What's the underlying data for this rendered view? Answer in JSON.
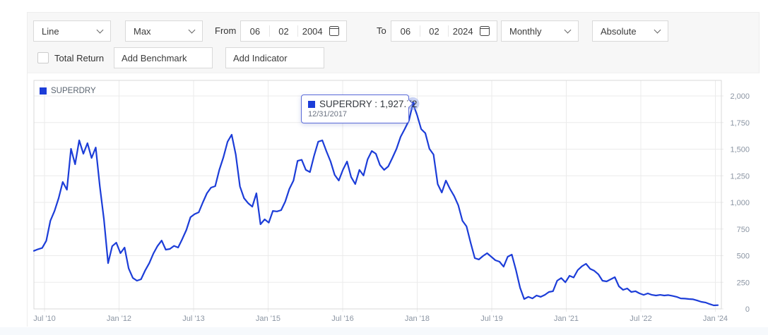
{
  "toolbar": {
    "chart_type_select": {
      "value": "Line"
    },
    "range_select": {
      "value": "Max"
    },
    "from_label": "From",
    "from_date": {
      "day": "06",
      "month": "02",
      "year": "2004"
    },
    "to_label": "To",
    "to_date": {
      "day": "06",
      "month": "02",
      "year": "2024"
    },
    "frequency_select": {
      "value": "Monthly"
    },
    "mode_select": {
      "value": "Absolute"
    },
    "total_return": {
      "label": "Total Return",
      "checked": false
    },
    "benchmark_input": {
      "placeholder": "Add Benchmark",
      "value": ""
    },
    "indicator_input": {
      "placeholder": "Add Indicator",
      "value": ""
    }
  },
  "chart": {
    "legend": {
      "label": "SUPERDRY"
    },
    "tooltip": {
      "label": "SUPERDRY : 1,927.72",
      "date": "12/31/2017"
    }
  },
  "colors": {
    "accent_blue": "#1c3dd8",
    "toolbar_bg": "#f7f7f7",
    "axis_label": "#8b95a3",
    "grid_line": "#ebebeb",
    "plot_border": "#d9d9d9",
    "tooltip_border": "#5a6bd8",
    "marker_halo": "rgba(140,160,230,0.45)"
  },
  "chart_data": {
    "type": "line",
    "series_name": "SUPERDRY",
    "frequency": "monthly",
    "start_month": "2010-04",
    "end_month": "2024-02",
    "legend_position": "top-left",
    "grid": true,
    "line_color": "#1c3dd8",
    "x_tick_labels": [
      "Jul '10",
      "Jan '12",
      "Jul '13",
      "Jan '15",
      "Jul '16",
      "Jan '18",
      "Jul '19",
      "Jan '21",
      "Jul '22",
      "Jan '24"
    ],
    "y_tick_labels": [
      "0",
      "250",
      "500",
      "750",
      "1,000",
      "1,250",
      "1,500",
      "1,750",
      "2,000"
    ],
    "y_tick_values": [
      0,
      250,
      500,
      750,
      1000,
      1250,
      1500,
      1750,
      2000
    ],
    "ylim": [
      0,
      2145
    ],
    "highlight": {
      "index": 92,
      "date": "12/31/2017",
      "value": 1927.72
    },
    "values": [
      545,
      560,
      572,
      640,
      828,
      920,
      1040,
      1192,
      1119,
      1503,
      1358,
      1583,
      1457,
      1556,
      1417,
      1516,
      1150,
      841,
      430,
      589,
      622,
      523,
      576,
      380,
      291,
      265,
      278,
      360,
      430,
      520,
      590,
      642,
      556,
      563,
      592,
      576,
      655,
      742,
      861,
      890,
      907,
      1000,
      1086,
      1139,
      1152,
      1305,
      1424,
      1570,
      1636,
      1450,
      1150,
      1040,
      993,
      960,
      1086,
      795,
      841,
      810,
      920,
      915,
      927,
      1007,
      1126,
      1205,
      1390,
      1400,
      1305,
      1285,
      1437,
      1570,
      1583,
      1480,
      1384,
      1258,
      1205,
      1305,
      1384,
      1238,
      1172,
      1305,
      1252,
      1404,
      1483,
      1457,
      1351,
      1305,
      1338,
      1417,
      1503,
      1616,
      1689,
      1768,
      1927.72,
      1821,
      1689,
      1650,
      1503,
      1450,
      1172,
      1093,
      1205,
      1126,
      1060,
      974,
      828,
      775,
      622,
      477,
      464,
      497,
      523,
      490,
      457,
      444,
      397,
      490,
      510,
      364,
      199,
      93,
      113,
      99,
      126,
      113,
      132,
      159,
      166,
      265,
      290,
      250,
      311,
      295,
      364,
      400,
      424,
      377,
      358,
      325,
      265,
      258,
      278,
      298,
      212,
      179,
      192,
      159,
      166,
      146,
      132,
      146,
      132,
      126,
      132,
      126,
      130,
      122,
      113,
      99,
      97,
      93,
      90,
      79,
      66,
      60,
      46,
      33,
      35
    ]
  }
}
